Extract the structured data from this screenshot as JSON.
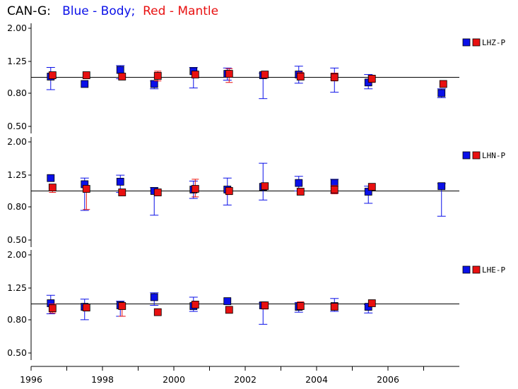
{
  "title": {
    "prefix": "CAN-G:",
    "blue_text": "Blue - Body;",
    "red_text": "Red - Mantle"
  },
  "colors": {
    "body": "#0a10e8",
    "mantle": "#e81010",
    "axis": "#000000"
  },
  "chart_data": [
    {
      "type": "scatter",
      "legend_label": "LHZ-P",
      "legend_position": "right",
      "yscale": "log",
      "yticks": [
        "2.00",
        "1.25",
        "0.80",
        "0.50"
      ],
      "ylim": [
        0.45,
        2.05
      ],
      "reference_line": 1.0,
      "series": [
        {
          "name": "Blue - Body",
          "points": [
            {
              "x": 1996.55,
              "y": 1.01,
              "lo": 0.84,
              "hi": 1.15
            },
            {
              "x": 1997.5,
              "y": 0.91,
              "lo": 0.91,
              "hi": 0.91
            },
            {
              "x": 1998.5,
              "y": 1.11,
              "lo": 0.98,
              "hi": 1.18
            },
            {
              "x": 1999.45,
              "y": 0.91,
              "lo": 0.85,
              "hi": 0.95
            },
            {
              "x": 2000.55,
              "y": 1.09,
              "lo": 0.86,
              "hi": 1.15
            },
            {
              "x": 2001.5,
              "y": 1.05,
              "lo": 0.96,
              "hi": 1.14
            },
            {
              "x": 2002.5,
              "y": 1.03,
              "lo": 0.74,
              "hi": 1.06
            },
            {
              "x": 2003.5,
              "y": 1.04,
              "lo": 0.92,
              "hi": 1.17
            },
            {
              "x": 2004.5,
              "y": 1.01,
              "lo": 0.81,
              "hi": 1.14
            },
            {
              "x": 2005.45,
              "y": 0.93,
              "lo": 0.85,
              "hi": 1.04
            },
            {
              "x": 2007.5,
              "y": 0.8,
              "lo": 0.75,
              "hi": 0.85
            }
          ]
        },
        {
          "name": "Red - Mantle",
          "points": [
            {
              "x": 1996.6,
              "y": 1.03,
              "lo": 0.98,
              "hi": 1.07
            },
            {
              "x": 1997.55,
              "y": 1.03,
              "lo": 0.98,
              "hi": 1.07
            },
            {
              "x": 1998.55,
              "y": 1.01,
              "lo": 0.98,
              "hi": 1.05
            },
            {
              "x": 1999.55,
              "y": 1.02,
              "lo": 0.95,
              "hi": 1.09
            },
            {
              "x": 2000.6,
              "y": 1.04,
              "lo": 1.0,
              "hi": 1.08
            },
            {
              "x": 2001.55,
              "y": 1.05,
              "lo": 0.93,
              "hi": 1.13
            },
            {
              "x": 2002.55,
              "y": 1.04,
              "lo": 1.0,
              "hi": 1.07
            },
            {
              "x": 2003.55,
              "y": 1.01,
              "lo": 0.97,
              "hi": 1.07
            },
            {
              "x": 2004.5,
              "y": 1.0,
              "lo": 0.95,
              "hi": 1.06
            },
            {
              "x": 2005.55,
              "y": 0.98,
              "lo": 0.93,
              "hi": 1.03
            },
            {
              "x": 2007.55,
              "y": 0.91,
              "lo": 0.89,
              "hi": 0.93
            }
          ]
        }
      ]
    },
    {
      "type": "scatter",
      "legend_label": "LHN-P",
      "legend_position": "right",
      "yscale": "log",
      "yticks": [
        "2.00",
        "1.25",
        "0.80",
        "0.50"
      ],
      "ylim": [
        0.45,
        2.05
      ],
      "reference_line": 1.0,
      "series": [
        {
          "name": "Blue - Body",
          "points": [
            {
              "x": 1996.55,
              "y": 1.2,
              "lo": 1.2,
              "hi": 1.2
            },
            {
              "x": 1997.5,
              "y": 1.1,
              "lo": 0.76,
              "hi": 1.2
            },
            {
              "x": 1998.5,
              "y": 1.14,
              "lo": 0.98,
              "hi": 1.25
            },
            {
              "x": 1999.45,
              "y": 1.0,
              "lo": 0.71,
              "hi": 1.05
            },
            {
              "x": 2000.55,
              "y": 1.02,
              "lo": 0.9,
              "hi": 1.15
            },
            {
              "x": 2001.5,
              "y": 1.02,
              "lo": 0.82,
              "hi": 1.2
            },
            {
              "x": 2002.5,
              "y": 1.06,
              "lo": 0.88,
              "hi": 1.48
            },
            {
              "x": 2003.5,
              "y": 1.12,
              "lo": 1.0,
              "hi": 1.23
            },
            {
              "x": 2004.5,
              "y": 1.12,
              "lo": 0.97,
              "hi": 1.18
            },
            {
              "x": 2005.45,
              "y": 0.99,
              "lo": 0.84,
              "hi": 1.07
            },
            {
              "x": 2007.5,
              "y": 1.07,
              "lo": 0.7,
              "hi": 1.11
            }
          ]
        },
        {
          "name": "Red - Mantle",
          "points": [
            {
              "x": 1996.6,
              "y": 1.05,
              "lo": 0.98,
              "hi": 1.1
            },
            {
              "x": 1997.55,
              "y": 1.03,
              "lo": 0.77,
              "hi": 1.08
            },
            {
              "x": 1998.55,
              "y": 0.98,
              "lo": 0.96,
              "hi": 1.01
            },
            {
              "x": 1999.55,
              "y": 0.98,
              "lo": 0.98,
              "hi": 0.98
            },
            {
              "x": 2000.6,
              "y": 1.03,
              "lo": 0.92,
              "hi": 1.18
            },
            {
              "x": 2001.55,
              "y": 1.0,
              "lo": 0.95,
              "hi": 1.05
            },
            {
              "x": 2002.55,
              "y": 1.07,
              "lo": 1.03,
              "hi": 1.1
            },
            {
              "x": 2003.55,
              "y": 0.99,
              "lo": 0.96,
              "hi": 1.03
            },
            {
              "x": 2004.5,
              "y": 1.02,
              "lo": 0.96,
              "hi": 1.08
            },
            {
              "x": 2005.55,
              "y": 1.06,
              "lo": 1.02,
              "hi": 1.09
            },
            {
              "x": 2007.55,
              "y": null,
              "lo": null,
              "hi": null
            }
          ]
        }
      ]
    },
    {
      "type": "scatter",
      "legend_label": "LHE-P",
      "legend_position": "right",
      "yscale": "log",
      "yticks": [
        "2.00",
        "1.25",
        "0.80",
        "0.50"
      ],
      "ylim": [
        0.45,
        2.05
      ],
      "reference_line": 1.0,
      "series": [
        {
          "name": "Blue - Body",
          "points": [
            {
              "x": 1996.55,
              "y": 1.01,
              "lo": 0.87,
              "hi": 1.13
            },
            {
              "x": 1997.5,
              "y": 0.96,
              "lo": 0.8,
              "hi": 1.07
            },
            {
              "x": 1998.5,
              "y": 0.98,
              "lo": 0.84,
              "hi": 1.04
            },
            {
              "x": 1999.45,
              "y": 1.1,
              "lo": 0.98,
              "hi": 1.17
            },
            {
              "x": 2000.55,
              "y": 0.97,
              "lo": 0.9,
              "hi": 1.1
            },
            {
              "x": 2001.5,
              "y": 1.04,
              "lo": 1.04,
              "hi": 1.04
            },
            {
              "x": 2002.5,
              "y": 0.98,
              "lo": 0.75,
              "hi": 1.02
            },
            {
              "x": 2003.5,
              "y": 0.96,
              "lo": 0.89,
              "hi": 1.02
            },
            {
              "x": 2004.5,
              "y": 0.97,
              "lo": 0.9,
              "hi": 1.08
            },
            {
              "x": 2005.45,
              "y": 0.96,
              "lo": 0.88,
              "hi": 0.99
            },
            {
              "x": 2007.5,
              "y": null,
              "lo": null,
              "hi": null
            }
          ]
        },
        {
          "name": "Red - Mantle",
          "points": [
            {
              "x": 1996.6,
              "y": 0.94,
              "lo": 0.88,
              "hi": 1.0
            },
            {
              "x": 1997.55,
              "y": 0.95,
              "lo": 0.92,
              "hi": 0.99
            },
            {
              "x": 1998.55,
              "y": 0.97,
              "lo": 0.84,
              "hi": 1.02
            },
            {
              "x": 1999.55,
              "y": 0.89,
              "lo": 0.89,
              "hi": 0.89
            },
            {
              "x": 2000.6,
              "y": 0.99,
              "lo": 0.95,
              "hi": 1.04
            },
            {
              "x": 2001.55,
              "y": 0.92,
              "lo": 0.9,
              "hi": 0.95
            },
            {
              "x": 2002.55,
              "y": 0.98,
              "lo": 0.93,
              "hi": 1.02
            },
            {
              "x": 2003.55,
              "y": 0.97,
              "lo": 0.93,
              "hi": 1.03
            },
            {
              "x": 2004.5,
              "y": 0.96,
              "lo": 0.92,
              "hi": 1.0
            },
            {
              "x": 2005.55,
              "y": 1.01,
              "lo": 0.97,
              "hi": 1.04
            },
            {
              "x": 2007.55,
              "y": null,
              "lo": null,
              "hi": null
            }
          ]
        }
      ]
    }
  ],
  "x_axis": {
    "xlim": [
      1996,
      2008.1
    ],
    "tick_labels": [
      "1996",
      "1998",
      "2000",
      "2002",
      "2004",
      "2006"
    ],
    "tick_values": [
      1996,
      1998,
      2000,
      2002,
      2004,
      2006
    ],
    "minor_tick_values": [
      1997,
      1999,
      2001,
      2003,
      2005,
      2007
    ]
  }
}
